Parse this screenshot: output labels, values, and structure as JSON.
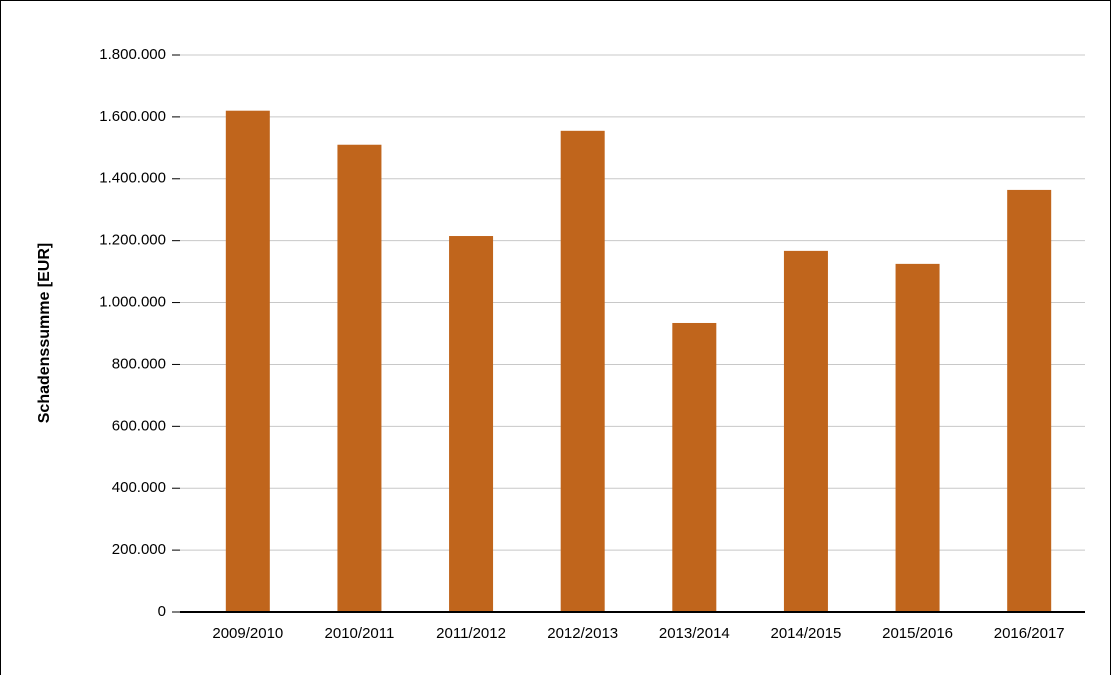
{
  "chart_data": {
    "type": "bar",
    "y_label": "Schadenssumme [EUR]",
    "categories": [
      "2009/2010",
      "2010/2011",
      "2011/2012",
      "2012/2013",
      "2013/2014",
      "2014/2015",
      "2015/2016",
      "2016/2017"
    ],
    "values": [
      1620000,
      1510000,
      1215000,
      1555000,
      934000,
      1167000,
      1125000,
      1364000
    ],
    "color": "#c0651c",
    "ylim": [
      0,
      1800000
    ],
    "yticks": [
      0,
      {
        "value": 200000,
        "label": "200.000"
      },
      {
        "value": 400000,
        "label": "400.000"
      },
      {
        "value": 600000,
        "label": "600.000"
      },
      {
        "value": 800000,
        "label": "800.000"
      },
      {
        "value": 1000000,
        "label": "1.000.000"
      },
      {
        "value": 1200000,
        "label": "1.200.000"
      },
      {
        "value": 1400000,
        "label": "1.400.000"
      },
      {
        "value": 1600000,
        "label": "1.600.000"
      },
      {
        "value": 1800000,
        "label": "1.800.000"
      }
    ],
    "grid": true
  }
}
